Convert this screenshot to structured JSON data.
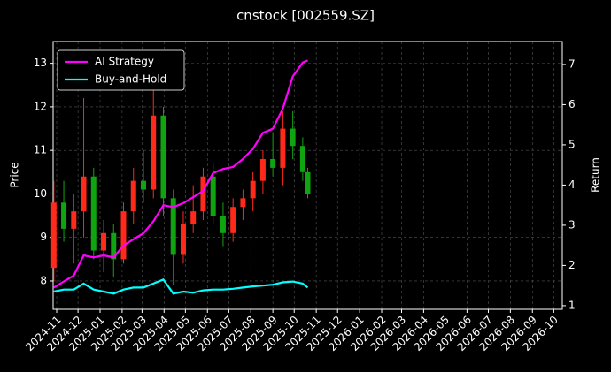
{
  "chart_data": {
    "type": "candlestick",
    "title": "cnstock [002559.SZ]",
    "ylabel": "Price",
    "y2label": "Return",
    "x": [
      "2024-10-28",
      "2024-11-11",
      "2024-11-25",
      "2024-12-09",
      "2024-12-23",
      "2025-01-06",
      "2025-01-20",
      "2025-02-03",
      "2025-02-17",
      "2025-03-03",
      "2025-03-17",
      "2025-03-31",
      "2025-04-14",
      "2025-04-28",
      "2025-05-12",
      "2025-05-26",
      "2025-06-09",
      "2025-06-23",
      "2025-07-07",
      "2025-07-21",
      "2025-08-04",
      "2025-08-18",
      "2025-09-01",
      "2025-09-15",
      "2025-09-29",
      "2025-10-13",
      "2025-10-20"
    ],
    "open": [
      8.3,
      9.8,
      9.2,
      9.6,
      10.4,
      8.7,
      9.1,
      8.5,
      9.6,
      10.3,
      10.1,
      11.8,
      9.9,
      8.6,
      9.3,
      9.6,
      10.4,
      9.5,
      9.1,
      9.7,
      9.9,
      10.3,
      10.8,
      10.6,
      11.5,
      11.1,
      10.5
    ],
    "high": [
      10.3,
      10.3,
      10.0,
      12.2,
      10.6,
      9.4,
      9.3,
      9.8,
      10.6,
      11.0,
      12.5,
      12.0,
      10.1,
      9.6,
      10.2,
      10.6,
      10.7,
      9.8,
      9.9,
      10.1,
      10.5,
      11.0,
      11.4,
      11.9,
      11.9,
      11.3,
      10.6
    ],
    "low": [
      8.0,
      8.9,
      8.4,
      9.0,
      8.5,
      8.2,
      8.1,
      8.4,
      9.3,
      9.8,
      9.9,
      9.5,
      7.9,
      8.4,
      9.1,
      9.4,
      9.3,
      8.8,
      8.9,
      9.4,
      9.6,
      10.0,
      10.4,
      10.2,
      10.8,
      10.3,
      9.9
    ],
    "close": [
      9.8,
      9.2,
      9.6,
      10.4,
      8.7,
      9.1,
      8.5,
      9.6,
      10.3,
      10.1,
      11.8,
      9.9,
      8.6,
      9.3,
      9.6,
      10.4,
      9.5,
      9.1,
      9.7,
      9.9,
      10.3,
      10.8,
      10.6,
      11.5,
      11.1,
      10.5,
      10.0
    ],
    "up_color": "#ff2a1a",
    "down_color": "#11a411",
    "series": [
      {
        "name": "AI Strategy",
        "color": "#ff00ff",
        "axis": "y2",
        "values": [
          1.45,
          1.6,
          1.75,
          2.25,
          2.2,
          2.25,
          2.2,
          2.5,
          2.65,
          2.8,
          3.1,
          3.5,
          3.45,
          3.55,
          3.7,
          3.85,
          4.3,
          4.4,
          4.45,
          4.65,
          4.9,
          5.3,
          5.4,
          5.9,
          6.7,
          7.05,
          7.1
        ]
      },
      {
        "name": "Buy-and-Hold",
        "color": "#00ffff",
        "axis": "y2",
        "values": [
          1.35,
          1.4,
          1.4,
          1.55,
          1.4,
          1.35,
          1.3,
          1.4,
          1.45,
          1.45,
          1.55,
          1.65,
          1.3,
          1.35,
          1.32,
          1.38,
          1.4,
          1.4,
          1.42,
          1.45,
          1.48,
          1.5,
          1.52,
          1.58,
          1.6,
          1.55,
          1.45
        ]
      }
    ],
    "xlim": [
      "2024-10-27",
      "2026-10-13"
    ],
    "xticks": [
      "2024-11",
      "2024-12",
      "2025-01",
      "2025-02",
      "2025-03",
      "2025-04",
      "2025-05",
      "2025-06",
      "2025-07",
      "2025-08",
      "2025-09",
      "2025-10",
      "2025-11",
      "2025-12",
      "2026-01",
      "2026-02",
      "2026-03",
      "2026-04",
      "2026-05",
      "2026-06",
      "2026-07",
      "2026-08",
      "2026-09",
      "2026-10"
    ],
    "ylim": [
      7.35,
      13.5
    ],
    "yticks": [
      8,
      9,
      10,
      11,
      12,
      13
    ],
    "y2lim": [
      0.91,
      7.57
    ],
    "y2ticks": [
      1,
      2,
      3,
      4,
      5,
      6,
      7
    ],
    "grid": true,
    "legend": "upper left"
  }
}
